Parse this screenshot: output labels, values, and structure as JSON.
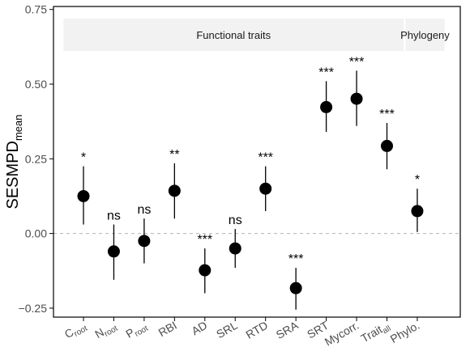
{
  "chart_data": {
    "type": "scatter",
    "ylabel_main": "SESMPD",
    "ylabel_sub": "mean",
    "ylim": [
      -0.28,
      0.76
    ],
    "yticks": [
      -0.25,
      0.0,
      0.25,
      0.5,
      0.75
    ],
    "ytick_labels": [
      "−0.25",
      "0.00",
      "0.25",
      "0.50",
      "0.75"
    ],
    "reference_line": 0.0,
    "grid": false,
    "groups": [
      {
        "label": "Functional traits",
        "from": 0,
        "to": 10
      },
      {
        "label": "Phylogeny",
        "from": 11,
        "to": 11
      }
    ],
    "categories": [
      {
        "main": "C",
        "sub": "root"
      },
      {
        "main": "N",
        "sub": "root"
      },
      {
        "main": "P",
        "sub": "root"
      },
      {
        "main": "RBI",
        "sub": ""
      },
      {
        "main": "AD",
        "sub": ""
      },
      {
        "main": "SRL",
        "sub": ""
      },
      {
        "main": "RTD",
        "sub": ""
      },
      {
        "main": "SRA",
        "sub": ""
      },
      {
        "main": "SRT",
        "sub": ""
      },
      {
        "main": "Mycorr.",
        "sub": ""
      },
      {
        "main": "Trait",
        "sub": "all"
      },
      {
        "main": "Phylo.",
        "sub": ""
      }
    ],
    "values": [
      0.125,
      -0.06,
      -0.025,
      0.143,
      -0.123,
      -0.05,
      0.15,
      -0.183,
      0.423,
      0.451,
      0.293,
      0.075
    ],
    "lower": [
      0.03,
      -0.155,
      -0.1,
      0.05,
      -0.2,
      -0.115,
      0.075,
      -0.255,
      0.34,
      0.36,
      0.215,
      0.005
    ],
    "upper": [
      0.225,
      0.03,
      0.05,
      0.235,
      -0.05,
      0.015,
      0.225,
      -0.115,
      0.51,
      0.545,
      0.37,
      0.15
    ],
    "significance": [
      "*",
      "ns",
      "ns",
      "**",
      "***",
      "ns",
      "***",
      "***",
      "***",
      "***",
      "***",
      "*"
    ],
    "colors": {
      "point": "#000000",
      "errorbar": "#000000",
      "strip": "#f2f2f2",
      "refline": "#b3b3b3",
      "axis": "#000000"
    }
  }
}
